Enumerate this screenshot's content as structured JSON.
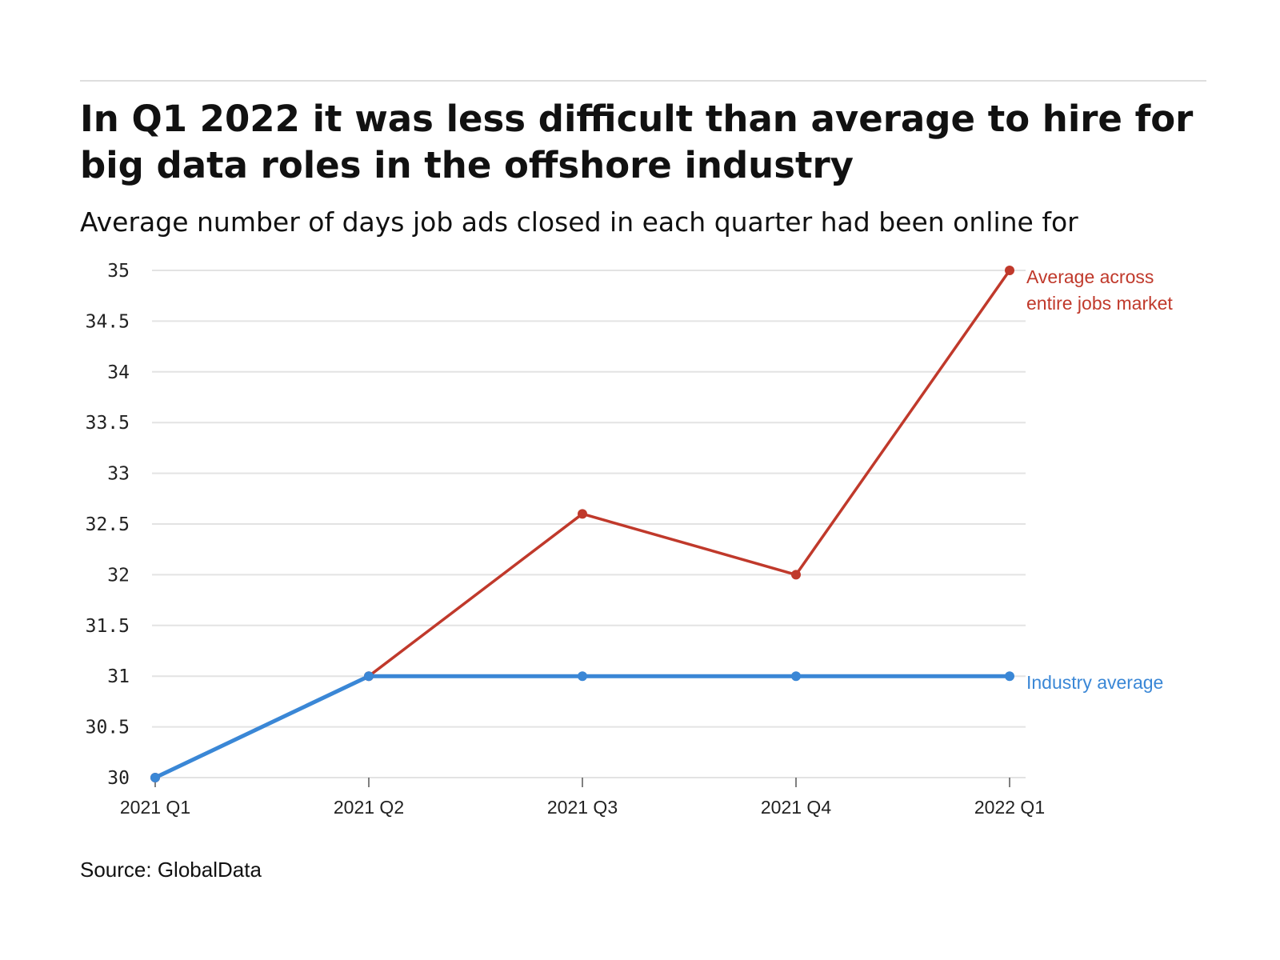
{
  "header": {
    "title": "In Q1 2022 it was less difficult than average to hire for big data roles in the offshore industry",
    "subtitle": "Average number of days job ads closed in each quarter had been online for"
  },
  "footer": {
    "source": "Source: GlobalData"
  },
  "chart_data": {
    "type": "line",
    "title": "In Q1 2022 it was less difficult than average to hire for big data roles in the offshore industry",
    "subtitle": "Average number of days job ads closed in each quarter had been online for",
    "xlabel": "",
    "ylabel": "",
    "categories": [
      "2021 Q1",
      "2021 Q2",
      "2021 Q3",
      "2021 Q4",
      "2022 Q1"
    ],
    "ylim": [
      30,
      35
    ],
    "yticks": [
      "30",
      "30.5",
      "31",
      "31.5",
      "32",
      "32.5",
      "33",
      "33.5",
      "34",
      "34.5",
      "35"
    ],
    "grid": true,
    "legend": "direct labels at right end of lines",
    "series": [
      {
        "name": "Average across entire jobs market",
        "label_lines": [
          "Average across",
          "entire jobs market"
        ],
        "color": "#c0392b",
        "values": [
          30,
          31,
          32.6,
          32,
          35
        ]
      },
      {
        "name": "Industry average",
        "label_lines": [
          "Industry average"
        ],
        "color": "#3a87d6",
        "values": [
          30,
          31,
          31,
          31,
          31
        ]
      }
    ]
  }
}
